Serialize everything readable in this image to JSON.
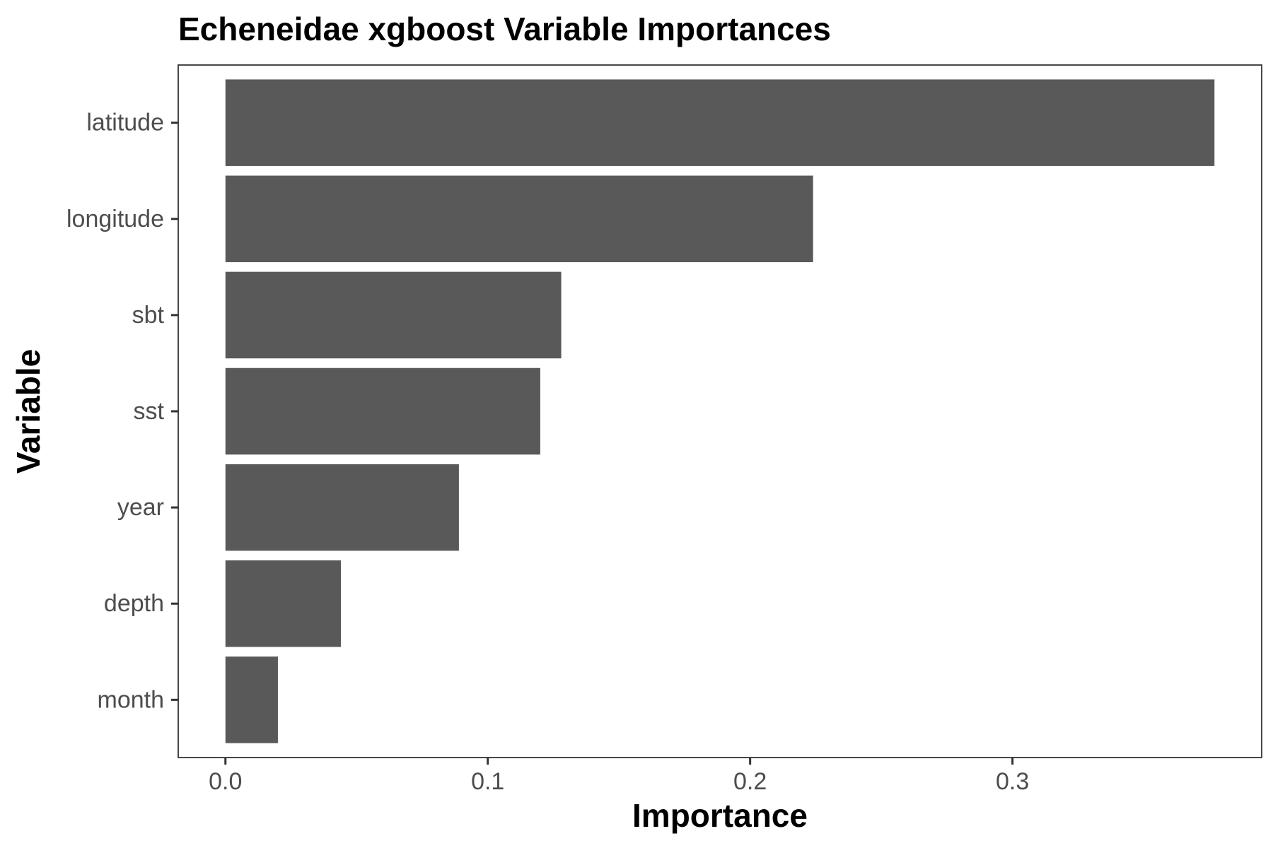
{
  "chart_data": {
    "type": "bar",
    "orientation": "horizontal",
    "title": "Echeneidae xgboost Variable Importances",
    "xlabel": "Importance",
    "ylabel": "Variable",
    "categories": [
      "latitude",
      "longitude",
      "sbt",
      "sst",
      "year",
      "depth",
      "month"
    ],
    "values": [
      0.377,
      0.224,
      0.128,
      0.12,
      0.089,
      0.044,
      0.02
    ],
    "xlim": [
      -0.018,
      0.395
    ],
    "xticks": [
      0.0,
      0.1,
      0.2,
      0.3
    ],
    "xtick_labels": [
      "0.0",
      "0.1",
      "0.2",
      "0.3"
    ],
    "grid": false,
    "legend": "none",
    "bar_color": "#595959",
    "panel_border_color": "#333333"
  }
}
